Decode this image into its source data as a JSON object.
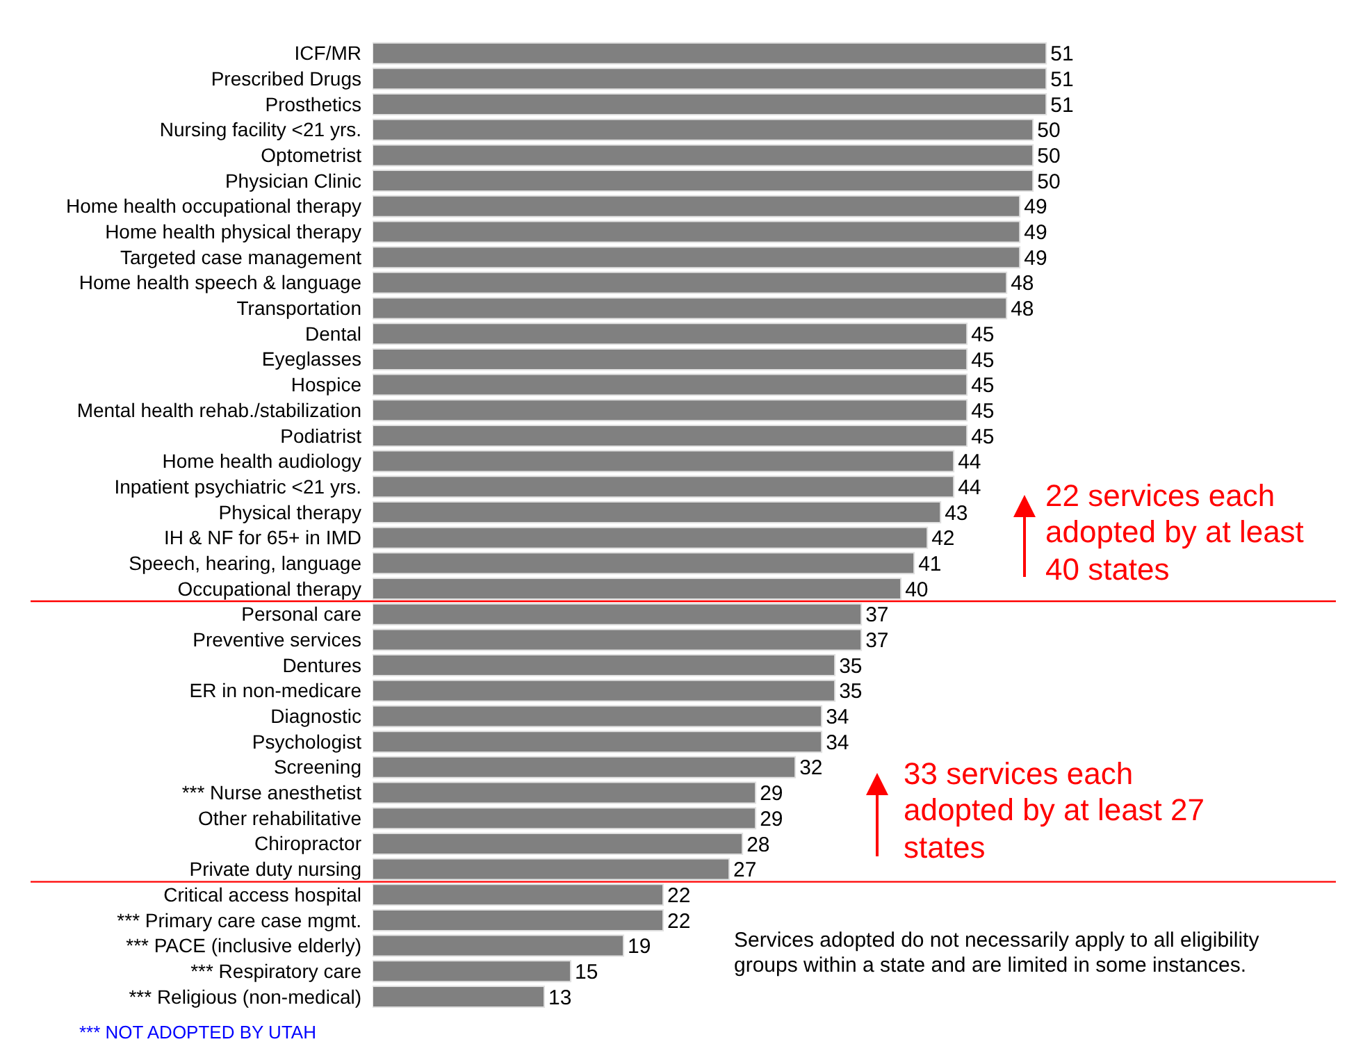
{
  "chart_data": {
    "type": "bar",
    "orientation": "horizontal",
    "data_labels": true,
    "tick_labels": "y",
    "categories": [
      "ICF/MR",
      "Prescribed Drugs",
      "Prosthetics",
      "Nursing facility  <21 yrs.",
      "Optometrist",
      "Physician Clinic",
      "Home health occupational therapy",
      "Home health physical therapy",
      "Targeted case management",
      "Home health speech & language",
      "Transportation",
      "Dental",
      "Eyeglasses",
      "Hospice",
      "Mental health rehab./stabilization",
      "Podiatrist",
      "Home health audiology",
      "Inpatient psychiatric <21 yrs.",
      "Physical therapy",
      "IH & NF for 65+ in IMD",
      "Speech, hearing, language",
      "Occupational therapy",
      "Personal care",
      "Preventive services",
      "Dentures",
      "ER in non-medicare",
      "Diagnostic",
      "Psychologist",
      "Screening",
      "*** Nurse anesthetist",
      "Other rehabilitative",
      "Chiropractor",
      "Private duty nursing",
      "Critical access hospital",
      "*** Primary care case mgmt.",
      "*** PACE (inclusive elderly)",
      "*** Respiratory care",
      "*** Religious (non-medical)"
    ],
    "values": [
      51,
      51,
      51,
      50,
      50,
      50,
      49,
      49,
      49,
      48,
      48,
      45,
      45,
      45,
      45,
      45,
      44,
      44,
      43,
      42,
      41,
      40,
      37,
      37,
      35,
      35,
      34,
      34,
      32,
      29,
      29,
      28,
      27,
      22,
      22,
      19,
      15,
      13
    ],
    "color": "#808080",
    "annotations": [
      "22 services each adopted by at least 40 states",
      "33 services each adopted by at least 27 states",
      "Services adopted do not necessarily apply to all eligibility groups within a state and are limited in some instances.",
      "*** NOT ADOPTED BY UTAH"
    ]
  }
}
